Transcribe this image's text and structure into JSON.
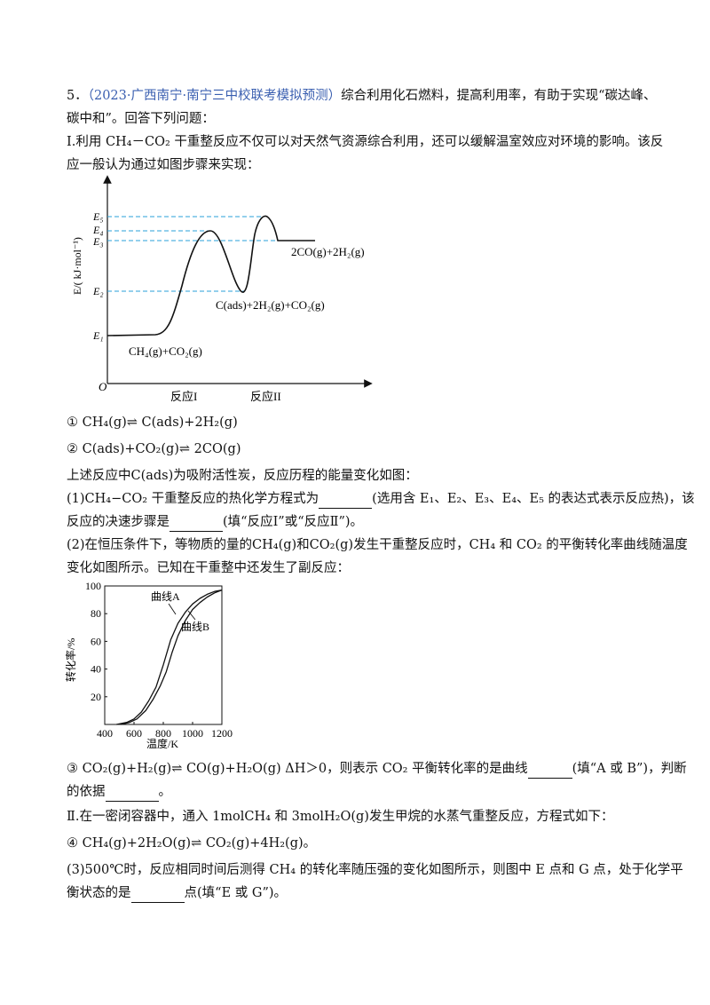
{
  "question": {
    "number": "5．",
    "source": "（2023·广西南宁·南宁三中校联考模拟预测）",
    "intro_1": "综合利用化石燃料，提高利用率，有助于实现“碳达峰、",
    "intro_2": "碳中和”。回答下列问题：",
    "part1_1": "Ⅰ.利用 CH₄－CO₂ 干重整反应不仅可以对天然气资源综合利用，还可以缓解温室效应对环境的影响。该反",
    "part1_2": "应一般认为通过如图步骤来实现：",
    "eq1": "① CH₄(g)⇌ C(ads)+2H₂(g)",
    "eq2": "② C(ads)+CO₂(g)⇌ 2CO(g)",
    "ads_note": "上述反应中C(ads)为吸附活性炭，反应历程的能量变化如图：",
    "q1_a": "(1)CH₄−CO₂ 干重整反应的热化学方程式为",
    "q1_b": "(选用含 E₁、E₂、E₃、E₄、E₅ 的表达式表示反应热)，该",
    "q1_c": "反应的决速步骤是",
    "q1_d": "(填“反应Ⅰ”或“反应Ⅱ”)。",
    "q2_a": "(2)在恒压条件下，等物质的量的CH₄(g)和CO₂(g)发生干重整反应时，CH₄ 和 CO₂ 的平衡转化率曲线随温度",
    "q2_b": "变化如图所示。已知在干重整中还发生了副反应：",
    "eq3_a": "③ CO₂(g)+H₂(g)⇌ CO(g)+H₂O(g)  ΔH＞0，则表示 CO₂ 平衡转化率的是曲线",
    "eq3_b": "(填“A 或 B”)，判断",
    "eq3_c": "的依据",
    "eq3_d": "。",
    "part2": "Ⅱ.在一密闭容器中，通入 1molCH₄ 和 3molH₂O(g)发生甲烷的水蒸气重整反应，方程式如下：",
    "eq4": "④ CH₄(g)+2H₂O(g)⇌ CO₂(g)+4H₂(g)。",
    "q3_a": "(3)500℃时，反应相同时间后测得 CH₄ 的转化率随压强的变化如图所示，则图中 E 点和 G 点，处于化学平",
    "q3_b": "衡状态的是",
    "q3_c": "点(填“E 或 G”)。"
  },
  "energy_diagram": {
    "ylabel": "E/( kJ·mol⁻¹)",
    "origin": "O",
    "levels": [
      "E₅",
      "E₄",
      "E₃",
      "E₂",
      "E₁"
    ],
    "x_labels": [
      "反应I",
      "反应II"
    ],
    "species_product": "2CO(g)+2H₂(g)",
    "species_intermediate": "C(ads)+2H₂(g)+CO₂(g)",
    "species_reactant": "CH₄(g)+CO₂(g)",
    "dash_color": "#2aa0d8"
  },
  "chart_data": {
    "type": "line",
    "xlabel": "温度/K",
    "ylabel": "转化率/%",
    "xlim": [
      400,
      1200
    ],
    "ylim": [
      0,
      100
    ],
    "xticks": [
      400,
      600,
      800,
      1000,
      1200
    ],
    "yticks": [
      20,
      40,
      60,
      80,
      100
    ],
    "series": [
      {
        "name": "曲线A",
        "x": [
          480,
          550,
          600,
          650,
          700,
          750,
          800,
          850,
          900,
          950,
          1000,
          1050,
          1100,
          1150,
          1200
        ],
        "values": [
          0,
          1.5,
          4,
          9,
          17,
          27,
          43,
          61,
          73,
          81,
          87,
          91,
          94,
          96,
          97
        ]
      },
      {
        "name": "曲线B",
        "x": [
          510,
          570,
          620,
          680,
          730,
          780,
          820,
          860,
          900,
          950,
          1000,
          1050,
          1100,
          1150,
          1200
        ],
        "values": [
          0,
          1.5,
          4,
          10,
          18,
          28,
          38,
          52,
          64,
          75,
          83,
          88,
          92,
          95,
          97
        ]
      }
    ]
  }
}
